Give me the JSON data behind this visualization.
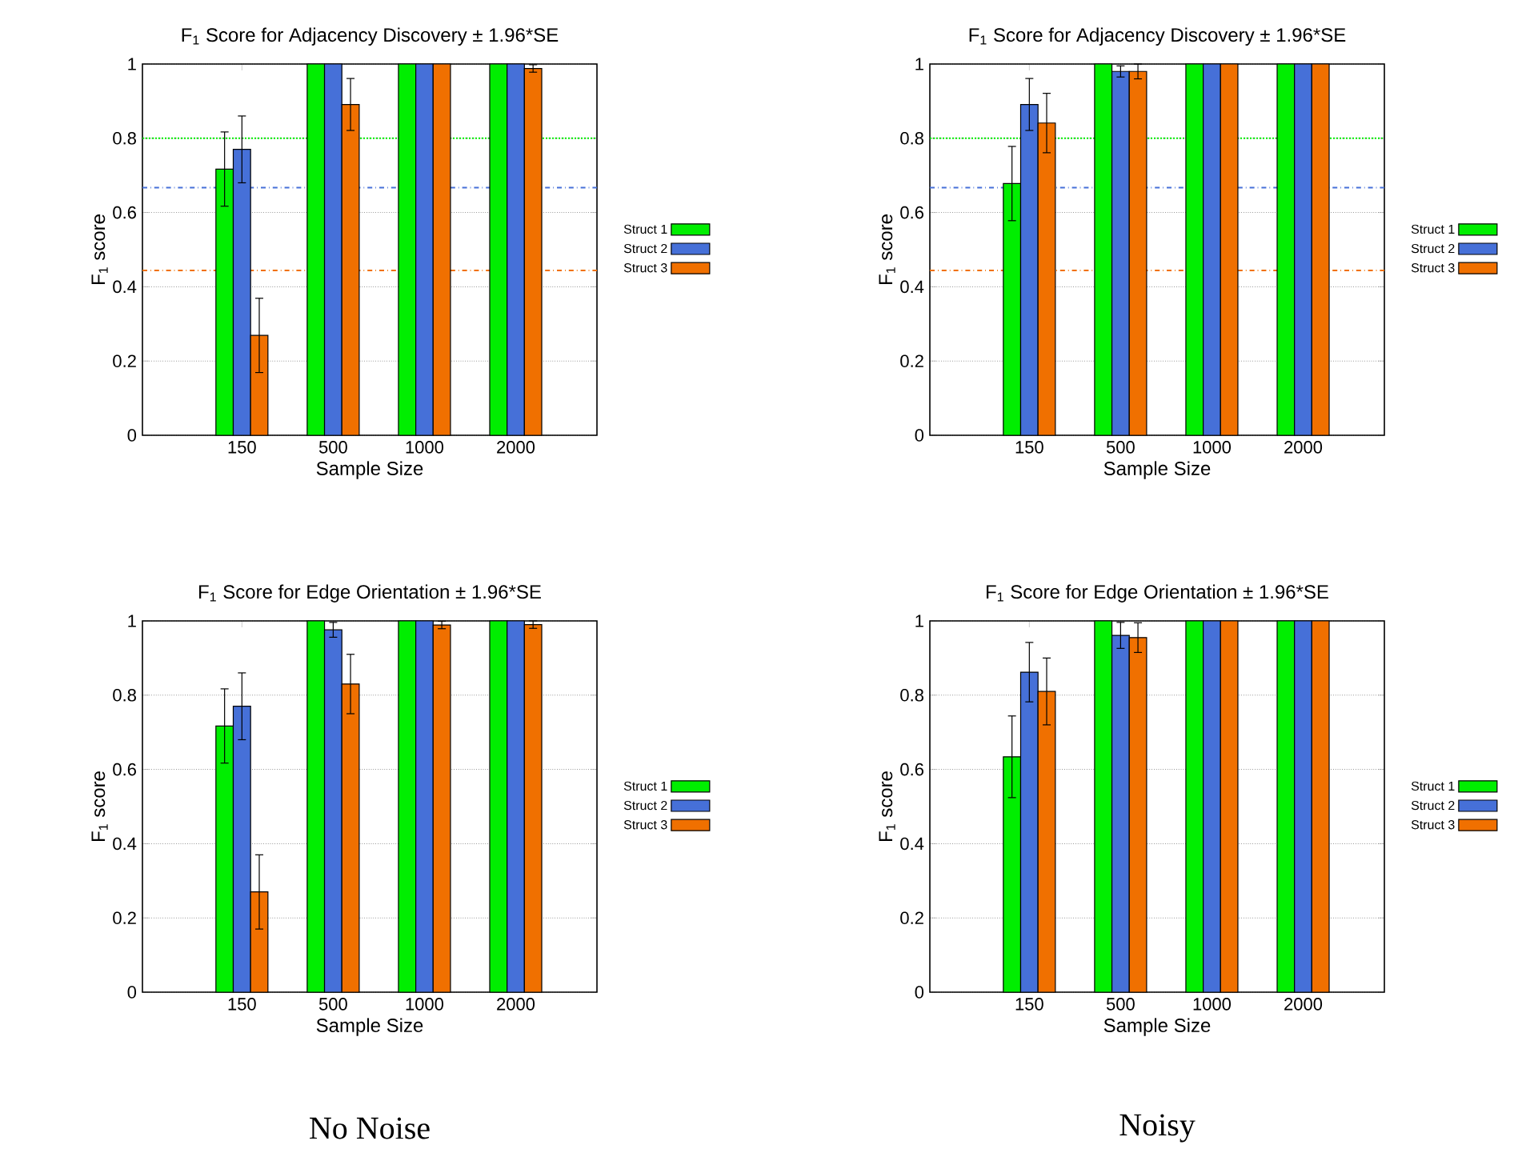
{
  "chart_data": [
    {
      "type": "bar",
      "title": "F$_{1}$ Score for Adjacency Discovery ± 1.96*SE",
      "xlabel": "Sample Size",
      "ylabel": "F$_{1}$ score",
      "categories": [
        "150",
        "500",
        "1000",
        "2000"
      ],
      "series": [
        {
          "name": "Struct 1",
          "color": "#00ee00",
          "values": [
            0.717,
            1,
            1,
            1
          ],
          "errors": [
            0.1,
            null,
            null,
            null
          ]
        },
        {
          "name": "Struct 2",
          "color": "#4670d8",
          "values": [
            0.77,
            1,
            1,
            1
          ],
          "errors": [
            0.09,
            null,
            null,
            null
          ]
        },
        {
          "name": "Struct 3",
          "color": "#f07000",
          "values": [
            0.269,
            0.891,
            1,
            0.988
          ],
          "errors": [
            0.1,
            0.07,
            null,
            0.01
          ]
        }
      ],
      "ylim": [
        0,
        1
      ],
      "yticks": [
        0,
        0.2,
        0.4,
        0.6,
        0.8,
        1
      ],
      "grid": "y",
      "legend": "right",
      "ref_lines": [
        {
          "axis": "y",
          "value": 0.8,
          "color": "#00ee00",
          "line_style": "dotted"
        },
        {
          "axis": "y",
          "value": 0.667,
          "color": "#4670d8",
          "line_style": "dashed"
        },
        {
          "axis": "y",
          "value": 0.444,
          "color": "#f07000",
          "line_style": "dashed"
        }
      ]
    },
    {
      "type": "bar",
      "title": "F$_{1}$ Score for Adjacency Discovery ± 1.96*SE",
      "xlabel": "Sample Size",
      "ylabel": "F$_{1}$ score",
      "categories": [
        "150",
        "500",
        "1000",
        "2000"
      ],
      "series": [
        {
          "name": "Struct 1",
          "color": "#00ee00",
          "values": [
            0.678,
            1,
            1,
            1
          ],
          "errors": [
            0.1,
            null,
            null,
            null
          ]
        },
        {
          "name": "Struct 2",
          "color": "#4670d8",
          "values": [
            0.891,
            0.98,
            1,
            1
          ],
          "errors": [
            0.07,
            0.015,
            null,
            null
          ]
        },
        {
          "name": "Struct 3",
          "color": "#f07000",
          "values": [
            0.841,
            0.98,
            1,
            1
          ],
          "errors": [
            0.08,
            0.02,
            null,
            null
          ]
        }
      ],
      "ylim": [
        0,
        1
      ],
      "yticks": [
        0,
        0.2,
        0.4,
        0.6,
        0.8,
        1
      ],
      "grid": "y",
      "legend": "right",
      "ref_lines": [
        {
          "axis": "y",
          "value": 0.8,
          "color": "#00ee00",
          "line_style": "dotted"
        },
        {
          "axis": "y",
          "value": 0.667,
          "color": "#4670d8",
          "line_style": "dashed"
        },
        {
          "axis": "y",
          "value": 0.444,
          "color": "#f07000",
          "line_style": "dashed"
        }
      ]
    },
    {
      "type": "bar",
      "title": "F$_{1}$ Score for Edge Orientation ± 1.96*SE",
      "xlabel": "Sample Size",
      "ylabel": "F$_{1}$ score",
      "categories": [
        "150",
        "500",
        "1000",
        "2000"
      ],
      "series": [
        {
          "name": "Struct 1",
          "color": "#00ee00",
          "values": [
            0.717,
            1,
            1,
            1
          ],
          "errors": [
            0.1,
            null,
            null,
            null
          ]
        },
        {
          "name": "Struct 2",
          "color": "#4670d8",
          "values": [
            0.77,
            0.976,
            1,
            1
          ],
          "errors": [
            0.09,
            0.02,
            null,
            null
          ]
        },
        {
          "name": "Struct 3",
          "color": "#f07000",
          "values": [
            0.27,
            0.83,
            0.989,
            0.99
          ],
          "errors": [
            0.1,
            0.08,
            0.01,
            0.01
          ]
        }
      ],
      "ylim": [
        0,
        1
      ],
      "yticks": [
        0,
        0.2,
        0.4,
        0.6,
        0.8,
        1
      ],
      "grid": "y",
      "legend": "right",
      "annotations": [
        "No Noise"
      ]
    },
    {
      "type": "bar",
      "title": "F$_{1}$ Score for Edge Orientation ± 1.96*SE",
      "xlabel": "Sample Size",
      "ylabel": "F$_{1}$ score",
      "categories": [
        "150",
        "500",
        "1000",
        "2000"
      ],
      "series": [
        {
          "name": "Struct 1",
          "color": "#00ee00",
          "values": [
            0.634,
            1,
            1,
            1
          ],
          "errors": [
            0.11,
            null,
            null,
            null
          ]
        },
        {
          "name": "Struct 2",
          "color": "#4670d8",
          "values": [
            0.862,
            0.961,
            1,
            1
          ],
          "errors": [
            0.08,
            0.035,
            null,
            null
          ]
        },
        {
          "name": "Struct 3",
          "color": "#f07000",
          "values": [
            0.81,
            0.955,
            1,
            1
          ],
          "errors": [
            0.09,
            0.04,
            null,
            null
          ]
        }
      ],
      "ylim": [
        0,
        1
      ],
      "yticks": [
        0,
        0.2,
        0.4,
        0.6,
        0.8,
        1
      ],
      "grid": "y",
      "legend": "right",
      "annotations": [
        "Noisy"
      ]
    }
  ]
}
